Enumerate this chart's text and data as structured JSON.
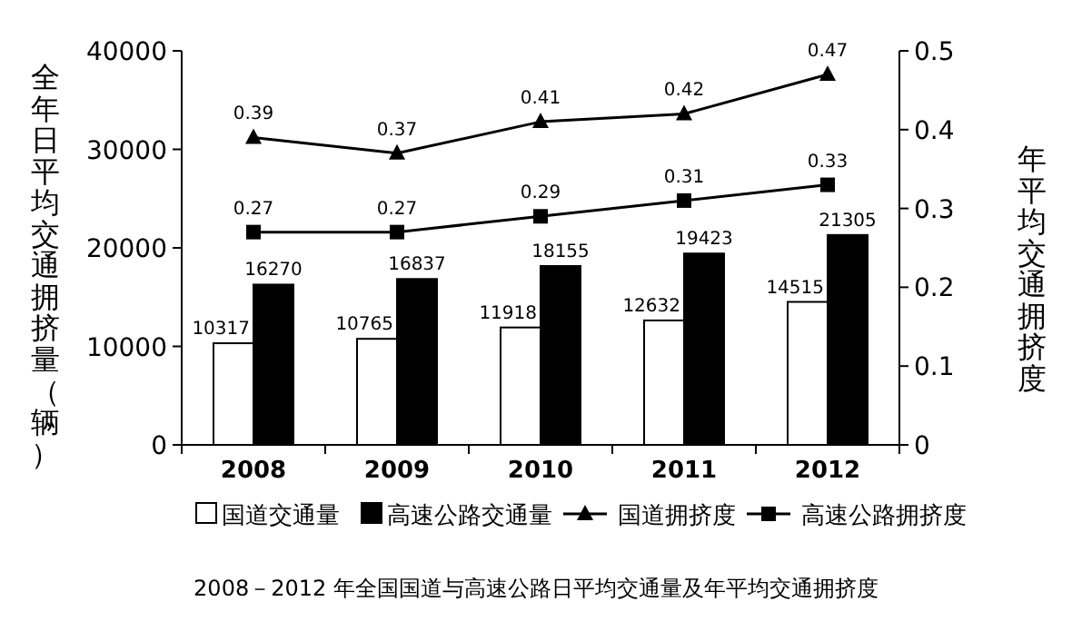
{
  "chart_data": {
    "type": "bar",
    "title": "2008－2012 年全国国道与高速公路日平均交通量及年平均交通拥挤度",
    "ylabel": "全年日平均交通拥挤量（辆）",
    "y2label": "年平均交通拥挤度",
    "categories": [
      "2008",
      "2009",
      "2010",
      "2011",
      "2012"
    ],
    "series": [
      {
        "name": "国道交通量",
        "color": "#ffffff",
        "values": [
          10317,
          10765,
          11918,
          12632,
          14515
        ]
      },
      {
        "name": "高速公路交通量",
        "color": "#000000",
        "values": [
          16270,
          16837,
          18155,
          19423,
          21305
        ]
      },
      {
        "name": "国道拥挤度",
        "type": "line",
        "axis": "y2",
        "marker": "triangle",
        "color": "#000000",
        "values": [
          0.39,
          0.37,
          0.41,
          0.42,
          0.47
        ]
      },
      {
        "name": "高速公路拥挤度",
        "type": "line",
        "axis": "y2",
        "marker": "square",
        "color": "#000000",
        "values": [
          0.27,
          0.27,
          0.29,
          0.31,
          0.33
        ]
      }
    ],
    "ylim": [
      0,
      40000
    ],
    "yticks": [
      0,
      10000,
      20000,
      30000,
      40000
    ],
    "y2lim": [
      0,
      0.5
    ],
    "y2ticks": [
      0,
      0.1,
      0.2,
      0.3,
      0.4,
      0.5
    ],
    "data_labels": true,
    "grid": false,
    "legend": "bottom"
  }
}
